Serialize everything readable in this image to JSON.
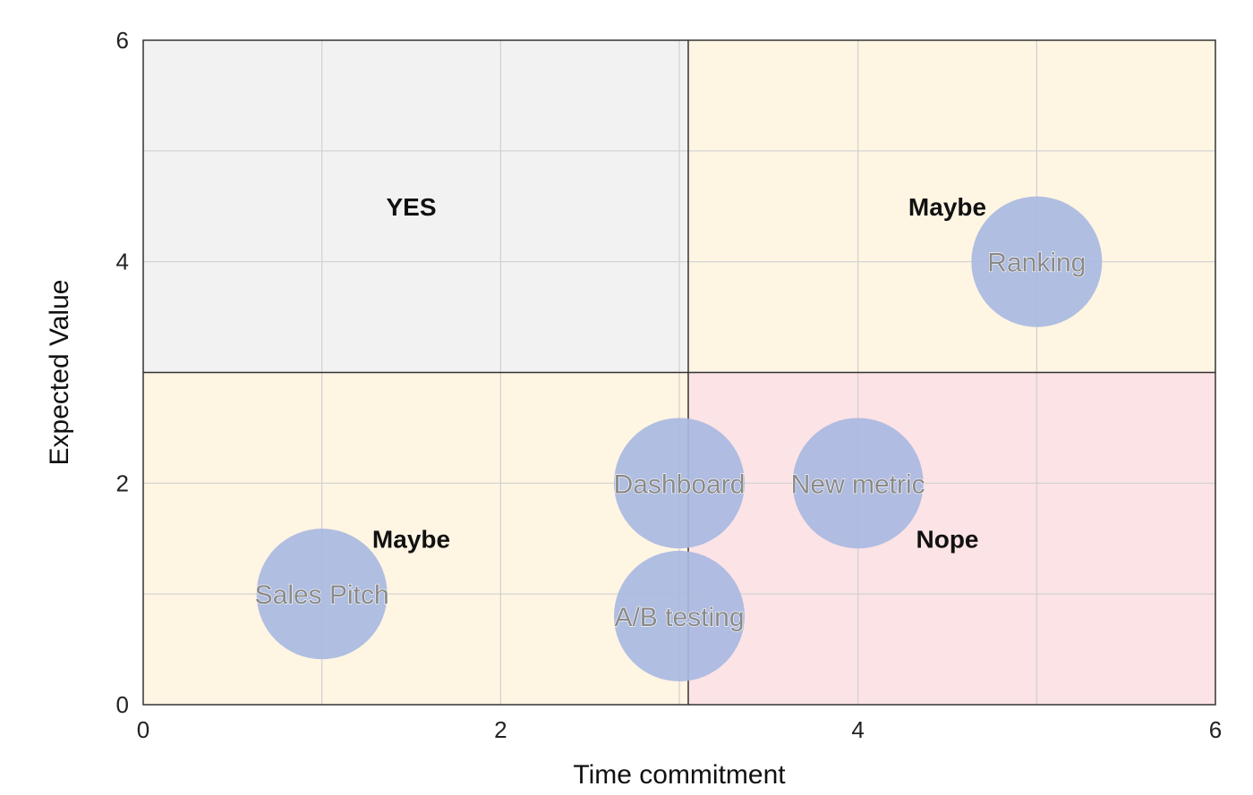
{
  "chart_data": {
    "type": "scatter",
    "subtype": "bubble-quadrant",
    "xlabel": "Time commitment",
    "ylabel": "Expected Value",
    "xlim": [
      0,
      6
    ],
    "ylim": [
      0,
      6
    ],
    "x_ticks": [
      "0",
      "2",
      "4",
      "6"
    ],
    "y_ticks": [
      "0",
      "2",
      "4",
      "6"
    ],
    "grid": true,
    "quadrant_split": {
      "x": 3.05,
      "y": 3
    },
    "quadrants": [
      {
        "id": "top-left",
        "x_range": [
          0,
          3.05
        ],
        "y_range": [
          3,
          6
        ],
        "label": "YES",
        "label_x": 1.5,
        "label_y": 4.5,
        "color": "#f2f2f2"
      },
      {
        "id": "top-right",
        "x_range": [
          3.05,
          6
        ],
        "y_range": [
          3,
          6
        ],
        "label": "Maybe",
        "label_x": 4.5,
        "label_y": 4.5,
        "color": "#fff5e3"
      },
      {
        "id": "bottom-left",
        "x_range": [
          0,
          3.05
        ],
        "y_range": [
          0,
          3
        ],
        "label": "Maybe",
        "label_x": 1.5,
        "label_y": 1.5,
        "color": "#fff5e3"
      },
      {
        "id": "bottom-right",
        "x_range": [
          3.05,
          6
        ],
        "y_range": [
          0,
          3
        ],
        "label": "Nope",
        "label_x": 4.5,
        "label_y": 1.5,
        "color": "#fbe3e6"
      }
    ],
    "points": [
      {
        "label": "Ranking",
        "x": 5,
        "y": 4
      },
      {
        "label": "Dashboard",
        "x": 3,
        "y": 2
      },
      {
        "label": "New metric",
        "x": 4,
        "y": 2
      },
      {
        "label": "Sales Pitch",
        "x": 1,
        "y": 1
      },
      {
        "label": "A/B testing",
        "x": 3,
        "y": 0.8
      }
    ],
    "bubble_color": "#a9b9e1"
  }
}
